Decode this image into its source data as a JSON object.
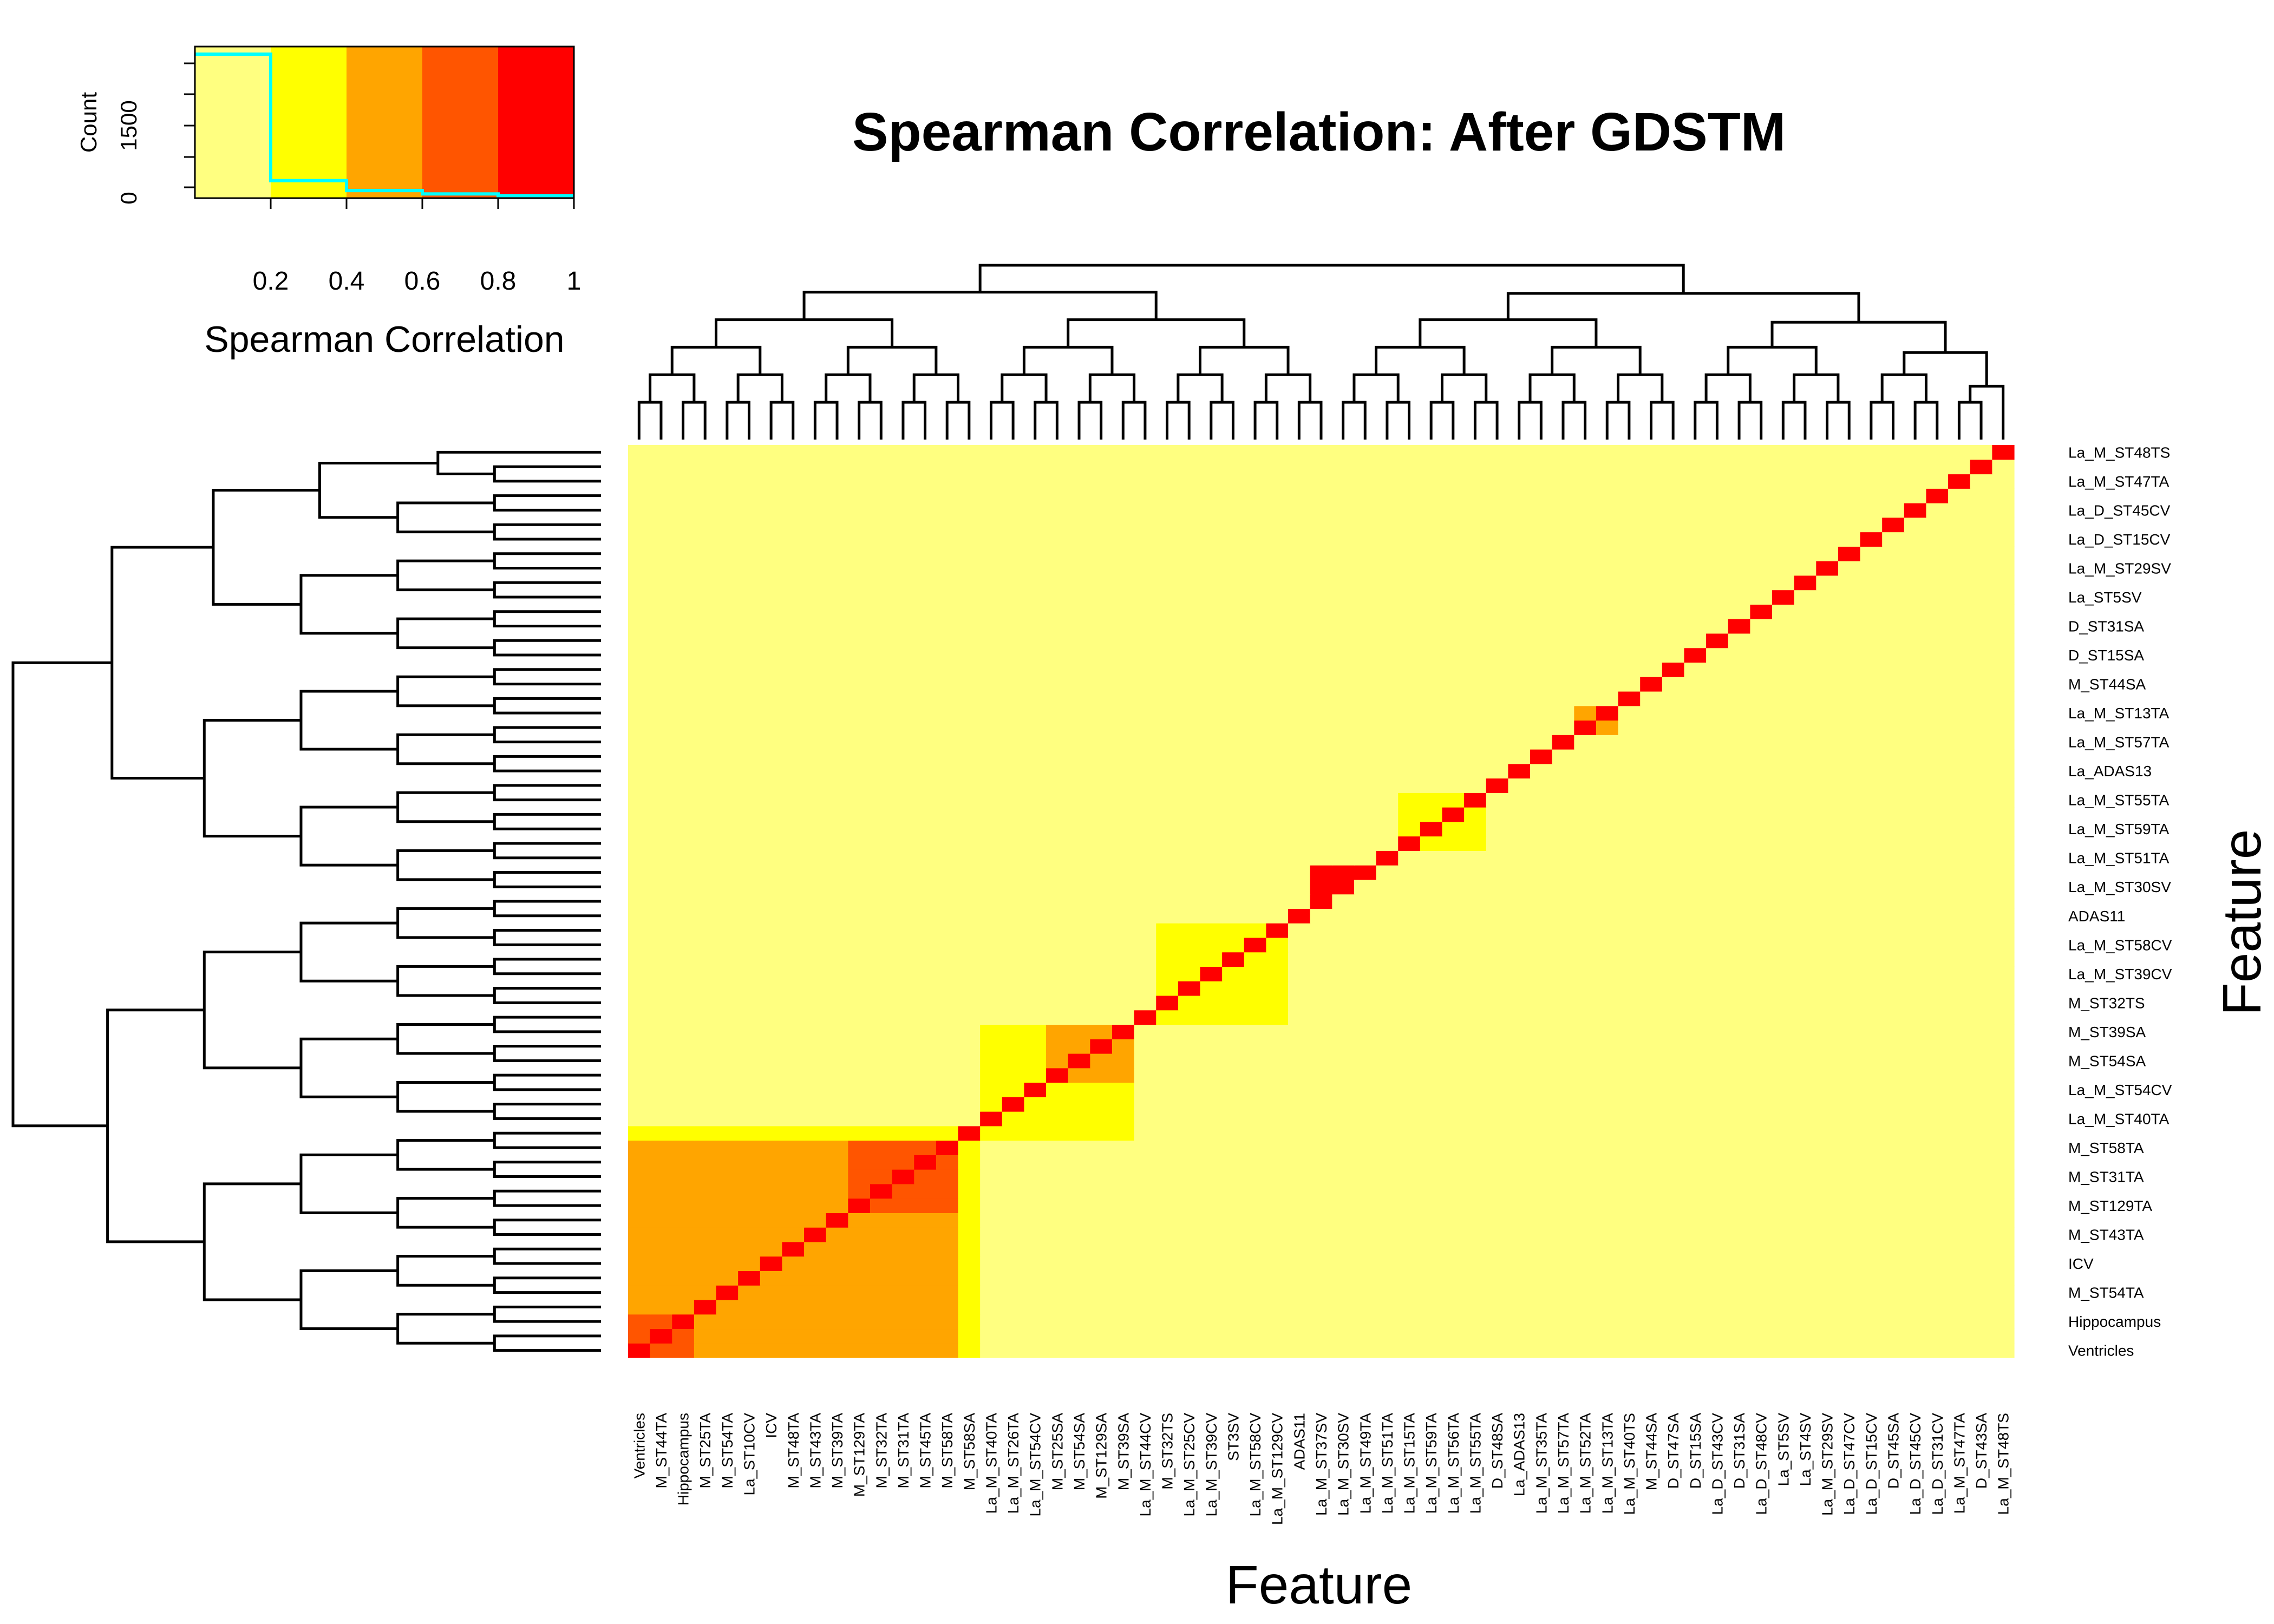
{
  "chart_data": {
    "type": "heatmap",
    "title": "Spearman Correlation: After GDSTM",
    "xlabel": "Feature",
    "ylabel": "Feature",
    "color_key": {
      "title": "Spearman Correlation",
      "count_label": "Count",
      "count_ticks": [
        "0",
        "1500"
      ],
      "value_ticks": [
        "0.2",
        "0.4",
        "0.6",
        "0.8",
        "1"
      ],
      "breaks": [
        0,
        0.2,
        0.4,
        0.6,
        0.8,
        1.0
      ],
      "colors": [
        "#FFFF80",
        "#FFFF00",
        "#FFA500",
        "#FF5500",
        "#FF0000"
      ],
      "histogram": [
        3450,
        420,
        180,
        100,
        60
      ],
      "histogram_color": "#00FFFF",
      "count_max": 3450
    },
    "features": [
      "Ventricles",
      "M_ST44TA",
      "Hippocampus",
      "M_ST25TA",
      "M_ST54TA",
      "La_ST10CV",
      "ICV",
      "M_ST48TA",
      "M_ST43TA",
      "M_ST39TA",
      "M_ST129TA",
      "M_ST32TA",
      "M_ST31TA",
      "M_ST45TA",
      "M_ST58TA",
      "M_ST58SA",
      "La_M_ST40TA",
      "La_M_ST26TA",
      "La_M_ST54CV",
      "M_ST25SA",
      "M_ST54SA",
      "M_ST129SA",
      "M_ST39SA",
      "La_M_ST44CV",
      "M_ST32TS",
      "La_M_ST25CV",
      "La_M_ST39CV",
      "ST3SV",
      "La_M_ST58CV",
      "La_M_ST129CV",
      "ADAS11",
      "La_M_ST37SV",
      "La_M_ST30SV",
      "La_M_ST49TA",
      "La_M_ST51TA",
      "La_M_ST15TA",
      "La_M_ST59TA",
      "La_M_ST56TA",
      "La_M_ST55TA",
      "D_ST48SA",
      "La_ADAS13",
      "La_M_ST35TA",
      "La_M_ST57TA",
      "La_M_ST52TA",
      "La_M_ST13TA",
      "La_M_ST40TS",
      "M_ST44SA",
      "D_ST47SA",
      "D_ST15SA",
      "La_D_ST43CV",
      "D_ST31SA",
      "La_D_ST48CV",
      "La_ST5SV",
      "La_ST4SV",
      "La_M_ST29SV",
      "La_D_ST47CV",
      "La_D_ST15CV",
      "D_ST45SA",
      "La_D_ST45CV",
      "La_D_ST31CV",
      "La_M_ST47TA",
      "D_ST43SA",
      "La_M_ST48TS"
    ],
    "row_label_indices": [
      62,
      60,
      58,
      56,
      54,
      52,
      50,
      48,
      46,
      44,
      42,
      40,
      38,
      36,
      34,
      32,
      30,
      28,
      26,
      24,
      22,
      20,
      18,
      16,
      14,
      12,
      10,
      8,
      6,
      4,
      2,
      0
    ],
    "blocks": [
      {
        "r": [
          0,
          2
        ],
        "c": [
          0,
          2
        ],
        "v": 0.7
      },
      {
        "r": [
          0,
          2
        ],
        "c": [
          3,
          14
        ],
        "v": 0.5
      },
      {
        "r": [
          0,
          2
        ],
        "c": [
          15,
          15
        ],
        "v": 0.3
      },
      {
        "r": [
          3,
          14
        ],
        "c": [
          0,
          2
        ],
        "v": 0.5
      },
      {
        "r": [
          3,
          6
        ],
        "c": [
          3,
          6
        ],
        "v": 0.5
      },
      {
        "r": [
          3,
          6
        ],
        "c": [
          7,
          14
        ],
        "v": 0.45
      },
      {
        "r": [
          7,
          14
        ],
        "c": [
          3,
          6
        ],
        "v": 0.45
      },
      {
        "r": [
          7,
          14
        ],
        "c": [
          7,
          14
        ],
        "v": 0.55
      },
      {
        "r": [
          10,
          14
        ],
        "c": [
          10,
          14
        ],
        "v": 0.7
      },
      {
        "r": [
          3,
          14
        ],
        "c": [
          15,
          15
        ],
        "v": 0.3
      },
      {
        "r": [
          15,
          15
        ],
        "c": [
          0,
          14
        ],
        "v": 0.3
      },
      {
        "r": [
          15,
          22
        ],
        "c": [
          16,
          22
        ],
        "v": 0.3
      },
      {
        "r": [
          19,
          22
        ],
        "c": [
          19,
          22
        ],
        "v": 0.45
      },
      {
        "r": [
          23,
          29
        ],
        "c": [
          24,
          29
        ],
        "v": 0.3
      },
      {
        "r": [
          32,
          33
        ],
        "c": [
          31,
          32
        ],
        "v": 0.98
      },
      {
        "r": [
          35,
          38
        ],
        "c": [
          35,
          38
        ],
        "v": 0.3
      },
      {
        "r": [
          43,
          44
        ],
        "c": [
          43,
          44
        ],
        "v": 0.5
      }
    ],
    "diagonal_value": 1.0
  }
}
